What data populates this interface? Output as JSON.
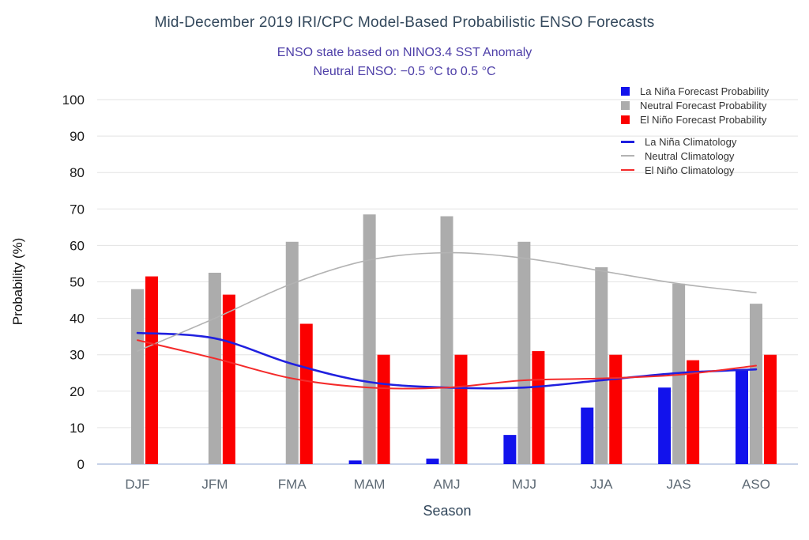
{
  "title": "Mid-December 2019 IRI/CPC Model-Based Probabilistic ENSO Forecasts",
  "subtitle1": "ENSO state based on NINO3.4 SST Anomaly",
  "subtitle2": "Neutral ENSO: −0.5 °C to 0.5 °C",
  "colors": {
    "la_nina_bar": "#1212EC",
    "neutral_bar": "#ACACAC",
    "el_nino_bar": "#FB0000",
    "la_nina_line": "#2020DF",
    "neutral_line": "#B3B3B3",
    "el_nino_line": "#F42A2A",
    "title": "#33485C",
    "subtitle": "#4E3FA8",
    "grid": "#E3E3E3",
    "baseline": "#C7D2E8",
    "y_tick_text": "#1A1A1A",
    "x_tick_text": "#5E6A75",
    "axis_label": "#111111",
    "legend_text": "#333333"
  },
  "chart_data": {
    "type": "grouped-bar+line",
    "categories": [
      "DJF",
      "JFM",
      "FMA",
      "MAM",
      "AMJ",
      "MJJ",
      "JJA",
      "JAS",
      "ASO"
    ],
    "bar_series": [
      {
        "name": "La Niña Forecast Probability",
        "color_key": "la_nina_bar",
        "values": [
          0,
          0,
          0,
          1,
          1.5,
          8,
          15.5,
          21,
          26
        ]
      },
      {
        "name": "Neutral Forecast Probability",
        "color_key": "neutral_bar",
        "values": [
          48,
          52.5,
          61,
          68.5,
          68,
          61,
          54,
          49.5,
          44
        ]
      },
      {
        "name": "El Niño Forecast Probability",
        "color_key": "el_nino_bar",
        "values": [
          51.5,
          46.5,
          38.5,
          30,
          30,
          31,
          30,
          28.5,
          30
        ]
      }
    ],
    "line_series": [
      {
        "name": "La Niña Climatology",
        "color_key": "la_nina_line",
        "values": [
          36,
          34.5,
          27.5,
          22.5,
          21,
          21,
          23,
          25,
          26
        ]
      },
      {
        "name": "Neutral Climatology",
        "color_key": "neutral_line",
        "values": [
          31,
          40,
          49.5,
          56,
          58,
          56.5,
          53,
          49.5,
          47
        ]
      },
      {
        "name": "El Niño Climatology",
        "color_key": "el_nino_line",
        "values": [
          34,
          29,
          23.5,
          21,
          21,
          23,
          23.5,
          24.5,
          27
        ]
      }
    ],
    "xlabel": "Season",
    "ylabel": "Probability (%)",
    "ylim": [
      0,
      100
    ],
    "ytick_step": 10,
    "grid": true,
    "legend_position": "top-right"
  }
}
